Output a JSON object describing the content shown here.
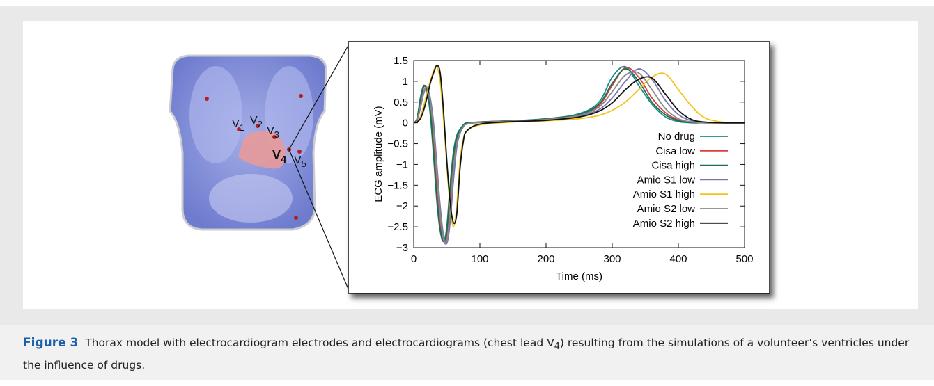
{
  "thorax": {
    "electrodes": [
      {
        "symbol": "V",
        "index": "1"
      },
      {
        "symbol": "V",
        "index": "2"
      },
      {
        "symbol": "V",
        "index": "3"
      },
      {
        "symbol": "V",
        "index": "4"
      },
      {
        "symbol": "V",
        "index": "5"
      }
    ]
  },
  "chart_data": {
    "type": "line",
    "xlabel": "Time (ms)",
    "ylabel": "ECG amplitude (mV)",
    "x": [
      0,
      5,
      10,
      15,
      20,
      25,
      30,
      35,
      40,
      45,
      50,
      55,
      60,
      65,
      70,
      75,
      80,
      100,
      150,
      200,
      250,
      280,
      300,
      320,
      340,
      360,
      380,
      400,
      420,
      440,
      470,
      500
    ],
    "series": [
      {
        "name": "No drug",
        "color": "#1a8a8a",
        "values": [
          0,
          0.1,
          0.6,
          0.9,
          0.75,
          0.2,
          -0.8,
          -1.9,
          -2.6,
          -2.85,
          -2.5,
          -1.5,
          -0.7,
          -0.3,
          -0.15,
          -0.05,
          0,
          0.02,
          0.05,
          0.1,
          0.22,
          0.5,
          1.1,
          1.35,
          0.9,
          0.45,
          0.15,
          0.03,
          0,
          0,
          0,
          0
        ]
      },
      {
        "name": "Cisa low",
        "color": "#d94040",
        "values": [
          0,
          0.1,
          0.5,
          0.85,
          0.85,
          0.4,
          -0.5,
          -1.6,
          -2.4,
          -2.85,
          -2.7,
          -1.8,
          -0.9,
          -0.4,
          -0.2,
          -0.08,
          -0.02,
          0.02,
          0.05,
          0.09,
          0.2,
          0.42,
          0.9,
          1.33,
          1.1,
          0.6,
          0.25,
          0.07,
          0.01,
          0,
          0,
          0
        ]
      },
      {
        "name": "Cisa high",
        "color": "#1f6e4a",
        "values": [
          0,
          0.1,
          0.55,
          0.88,
          0.8,
          0.3,
          -0.7,
          -1.8,
          -2.55,
          -2.85,
          -2.6,
          -1.6,
          -0.8,
          -0.35,
          -0.18,
          -0.06,
          -0.01,
          0.02,
          0.05,
          0.09,
          0.2,
          0.45,
          0.95,
          1.3,
          1.0,
          0.5,
          0.2,
          0.05,
          0.01,
          0,
          0,
          0
        ]
      },
      {
        "name": "Amio S1 low",
        "color": "#7a74b0",
        "values": [
          0,
          0.05,
          0.35,
          0.7,
          0.85,
          0.6,
          0,
          -1.0,
          -2.0,
          -2.7,
          -2.9,
          -2.4,
          -1.4,
          -0.6,
          -0.25,
          -0.1,
          -0.03,
          0.01,
          0.04,
          0.08,
          0.16,
          0.32,
          0.6,
          1.0,
          1.3,
          1.05,
          0.55,
          0.2,
          0.05,
          0.01,
          0,
          0
        ]
      },
      {
        "name": "Amio S1 high",
        "color": "#f2c419",
        "values": [
          0,
          0.03,
          0.15,
          0.4,
          0.7,
          1.0,
          1.25,
          1.35,
          1.0,
          0.1,
          -1.0,
          -2.0,
          -2.5,
          -2.0,
          -0.9,
          -0.4,
          -0.2,
          -0.05,
          0.02,
          0.05,
          0.1,
          0.18,
          0.3,
          0.5,
          0.8,
          1.1,
          1.18,
          0.8,
          0.4,
          0.12,
          0.01,
          0
        ]
      },
      {
        "name": "Amio S2 low",
        "color": "#888888",
        "values": [
          0,
          0.06,
          0.4,
          0.75,
          0.85,
          0.5,
          -0.2,
          -1.2,
          -2.2,
          -2.8,
          -2.85,
          -2.1,
          -1.1,
          -0.5,
          -0.22,
          -0.09,
          -0.03,
          0.01,
          0.04,
          0.08,
          0.18,
          0.38,
          0.75,
          1.15,
          1.2,
          0.8,
          0.35,
          0.1,
          0.02,
          0,
          0,
          0
        ]
      },
      {
        "name": "Amio S2 high",
        "color": "#111111",
        "values": [
          0,
          0.02,
          0.1,
          0.3,
          0.6,
          0.95,
          1.2,
          1.38,
          1.2,
          0.3,
          -0.9,
          -1.9,
          -2.4,
          -2.2,
          -1.1,
          -0.45,
          -0.2,
          -0.03,
          0.03,
          0.06,
          0.14,
          0.28,
          0.48,
          0.8,
          1.05,
          1.08,
          0.7,
          0.3,
          0.08,
          0.02,
          0,
          0
        ]
      }
    ],
    "xlim": [
      0,
      500
    ],
    "xticks": [
      0,
      100,
      200,
      300,
      400,
      500
    ],
    "ylim": [
      -3,
      1.5
    ],
    "yticks": [
      {
        "value": -3,
        "label": "−3"
      },
      {
        "value": -2.5,
        "label": "−2.5"
      },
      {
        "value": -2,
        "label": "−2"
      },
      {
        "value": -1.5,
        "label": "−1.5"
      },
      {
        "value": -1,
        "label": "−1"
      },
      {
        "value": -0.5,
        "label": "−0.5"
      },
      0,
      0.5,
      1,
      1.5
    ],
    "legend": "right"
  },
  "caption": {
    "label": "Figure 3",
    "text_before": "Thorax model with electrocardiogram electrodes and electrocardiograms (chest lead V",
    "subscript": "4",
    "text_after": ") resulting from the simulations of a volunteer’s ventricles under the influence of drugs."
  }
}
